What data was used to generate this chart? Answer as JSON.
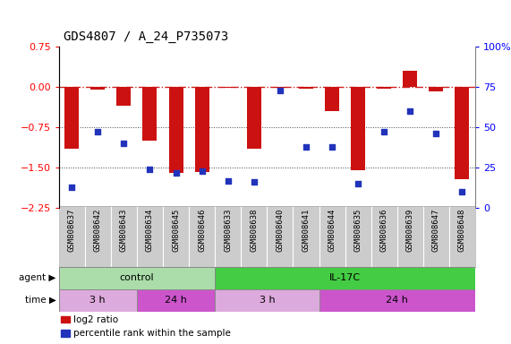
{
  "title": "GDS4807 / A_24_P735073",
  "samples": [
    "GSM808637",
    "GSM808642",
    "GSM808643",
    "GSM808634",
    "GSM808645",
    "GSM808646",
    "GSM808633",
    "GSM808638",
    "GSM808640",
    "GSM808641",
    "GSM808644",
    "GSM808635",
    "GSM808636",
    "GSM808639",
    "GSM808647",
    "GSM808648"
  ],
  "log2_ratios": [
    -1.15,
    -0.05,
    -0.35,
    -1.0,
    -1.6,
    -1.58,
    -0.02,
    -1.15,
    -0.02,
    -0.03,
    -0.45,
    -1.55,
    -0.03,
    0.3,
    -0.08,
    -1.72
  ],
  "percentile_ranks": [
    13,
    47,
    40,
    24,
    22,
    23,
    17,
    16,
    73,
    38,
    38,
    15,
    47,
    60,
    46,
    10
  ],
  "ylim_left": [
    -2.25,
    0.75
  ],
  "ylim_right": [
    0,
    100
  ],
  "yticks_left": [
    0.75,
    0.0,
    -0.75,
    -1.5,
    -2.25
  ],
  "yticks_right": [
    100,
    75,
    50,
    25,
    0
  ],
  "bar_color": "#cc1111",
  "dot_color": "#2233bb",
  "hline_0_color": "#cc2222",
  "hline_dotted_color": "#444444",
  "agent_groups": [
    {
      "label": "control",
      "start": 0,
      "end": 6,
      "color": "#aaddaa"
    },
    {
      "label": "IL-17C",
      "start": 6,
      "end": 16,
      "color": "#44cc44"
    }
  ],
  "time_groups": [
    {
      "label": "3 h",
      "start": 0,
      "end": 3,
      "color": "#ddaadd"
    },
    {
      "label": "24 h",
      "start": 3,
      "end": 6,
      "color": "#cc55cc"
    },
    {
      "label": "3 h",
      "start": 6,
      "end": 10,
      "color": "#ddaadd"
    },
    {
      "label": "24 h",
      "start": 10,
      "end": 16,
      "color": "#cc55cc"
    }
  ],
  "legend_items": [
    {
      "label": "log2 ratio",
      "color": "#cc1111"
    },
    {
      "label": "percentile rank within the sample",
      "color": "#2233bb"
    }
  ],
  "bar_width": 0.55,
  "tick_label_fontsize": 6.5,
  "title_fontsize": 10,
  "agent_label": "agent",
  "time_label": "time",
  "xtick_bg": "#cccccc"
}
